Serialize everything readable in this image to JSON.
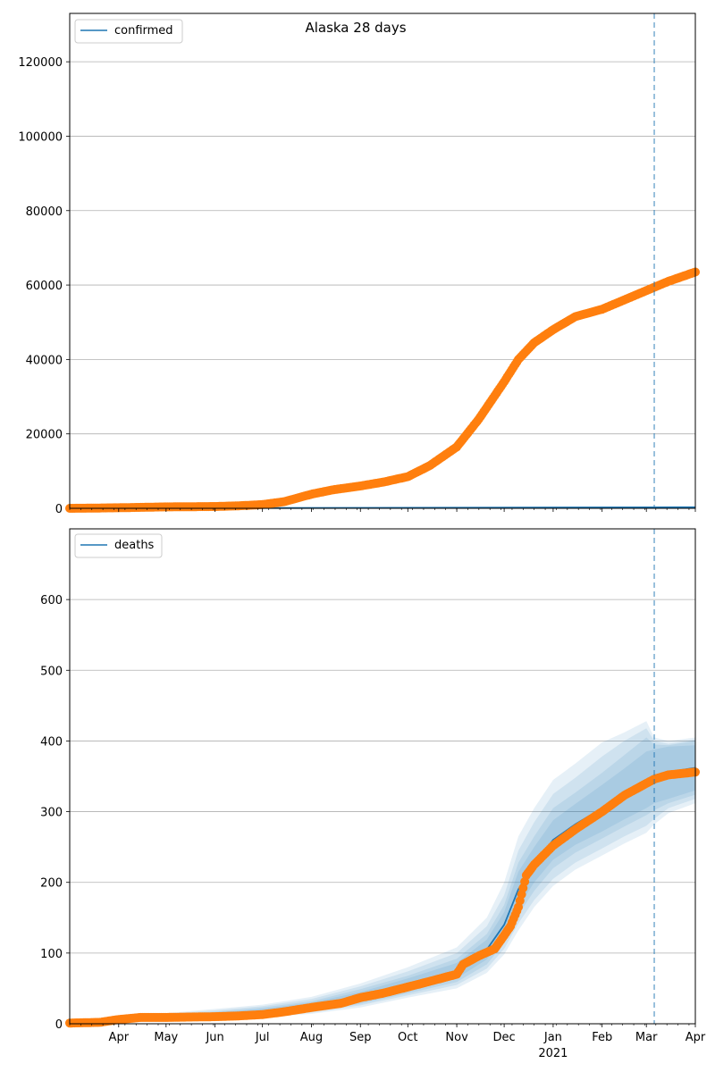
{
  "chart_data": [
    {
      "type": "line",
      "title": "Alaska 28 days",
      "xlabel": "",
      "ylabel": "",
      "x_range": [
        "2020-03-01",
        "2021-04-01"
      ],
      "ylim": [
        0,
        133000
      ],
      "yticks": [
        0,
        20000,
        40000,
        60000,
        80000,
        100000,
        120000
      ],
      "grid": "y",
      "legend": {
        "position": "top-left",
        "entries": [
          "confirmed"
        ]
      },
      "forecast_start": "2021-03-06",
      "series": [
        {
          "name": "confirmed",
          "kind": "model",
          "color": "#1f77b4",
          "x": [
            "2020-03-01",
            "2020-07-01",
            "2020-11-01",
            "2021-03-06",
            "2021-04-01"
          ],
          "y": [
            0,
            80,
            180,
            270,
            300
          ]
        },
        {
          "kind": "observed",
          "color": "#ff7f0e",
          "x": [
            "2020-03-01",
            "2020-03-15",
            "2020-04-01",
            "2020-05-01",
            "2020-06-01",
            "2020-06-15",
            "2020-07-01",
            "2020-07-15",
            "2020-08-01",
            "2020-08-15",
            "2020-09-01",
            "2020-09-15",
            "2020-10-01",
            "2020-10-15",
            "2020-11-01",
            "2020-11-15",
            "2020-12-01",
            "2020-12-10",
            "2020-12-20",
            "2021-01-01",
            "2021-01-15",
            "2021-02-01",
            "2021-02-15",
            "2021-03-01",
            "2021-03-15",
            "2021-04-01"
          ],
          "y": [
            0,
            50,
            150,
            380,
            480,
            650,
            1000,
            1800,
            3800,
            5000,
            6000,
            7000,
            8500,
            11500,
            16500,
            24000,
            34000,
            40000,
            44500,
            48000,
            51500,
            53500,
            56000,
            58500,
            61000,
            63500
          ]
        }
      ]
    },
    {
      "type": "line",
      "title": "",
      "xlabel": "",
      "ylabel": "",
      "x_range": [
        "2020-03-01",
        "2021-04-01"
      ],
      "ylim": [
        0,
        700
      ],
      "yticks": [
        0,
        100,
        200,
        300,
        400,
        500,
        600
      ],
      "grid": "y",
      "legend": {
        "position": "top-left",
        "entries": [
          "deaths"
        ]
      },
      "forecast_start": "2021-03-06",
      "x_tick_labels": [
        {
          "label": "Apr",
          "x": "2020-04-01"
        },
        {
          "label": "May",
          "x": "2020-05-01"
        },
        {
          "label": "Jun",
          "x": "2020-06-01"
        },
        {
          "label": "Jul",
          "x": "2020-07-01"
        },
        {
          "label": "Aug",
          "x": "2020-08-01"
        },
        {
          "label": "Sep",
          "x": "2020-09-01"
        },
        {
          "label": "Oct",
          "x": "2020-10-01"
        },
        {
          "label": "Nov",
          "x": "2020-11-01"
        },
        {
          "label": "Dec",
          "x": "2020-12-01"
        },
        {
          "label": "Jan",
          "x": "2021-01-01"
        },
        {
          "label": "Feb",
          "x": "2021-02-01"
        },
        {
          "label": "Mar",
          "x": "2021-03-01"
        },
        {
          "label": "Apr",
          "x": "2021-04-01"
        }
      ],
      "x_year_label": {
        "label": "2021",
        "x": "2021-01-01"
      },
      "series": [
        {
          "name": "deaths",
          "kind": "model",
          "color": "#1f77b4",
          "x": [
            "2020-03-01",
            "2020-04-01",
            "2020-05-01",
            "2020-06-01",
            "2020-07-01",
            "2020-08-01",
            "2020-09-01",
            "2020-10-01",
            "2020-11-01",
            "2020-11-20",
            "2020-12-01",
            "2020-12-10",
            "2020-12-20",
            "2021-01-01",
            "2021-01-15",
            "2021-02-01",
            "2021-02-15",
            "2021-03-01",
            "2021-03-06",
            "2021-03-15",
            "2021-04-01"
          ],
          "y": [
            0,
            5,
            10,
            13,
            17,
            25,
            38,
            55,
            75,
            105,
            140,
            190,
            225,
            260,
            282,
            305,
            325,
            345,
            350,
            356,
            362
          ],
          "bands": [
            {
              "lower": [
                0,
                4,
                8,
                10,
                13,
                20,
                31,
                46,
                64,
                91,
                122,
                165,
                200,
                232,
                253,
                272,
                289,
                305,
                312,
                318,
                330
              ],
              "upper": [
                0,
                6,
                12,
                16,
                21,
                30,
                45,
                64,
                86,
                119,
                158,
                215,
                250,
                288,
                311,
                338,
                361,
                385,
                388,
                392,
                394
              ]
            },
            {
              "lower": [
                0,
                3,
                7,
                9,
                12,
                18,
                28,
                43,
                59,
                84,
                114,
                154,
                188,
                220,
                242,
                262,
                279,
                295,
                302,
                312,
                324
              ],
              "upper": [
                0,
                7,
                13,
                17,
                23,
                32,
                49,
                68,
                92,
                127,
                168,
                228,
                265,
                305,
                327,
                355,
                380,
                405,
                395,
                394,
                400
              ]
            },
            {
              "lower": [
                0,
                2,
                6,
                8,
                11,
                16,
                26,
                40,
                55,
                78,
                106,
                142,
                175,
                205,
                228,
                248,
                265,
                280,
                290,
                305,
                318
              ],
              "upper": [
                0,
                8,
                14,
                19,
                25,
                35,
                53,
                74,
                100,
                138,
                182,
                245,
                285,
                325,
                348,
                378,
                400,
                418,
                400,
                396,
                402
              ]
            },
            {
              "lower": [
                0,
                1,
                5,
                7,
                9,
                14,
                23,
                37,
                50,
                72,
                98,
                132,
                165,
                195,
                218,
                238,
                255,
                270,
                282,
                298,
                312
              ],
              "upper": [
                0,
                9,
                15,
                21,
                27,
                38,
                57,
                80,
                108,
                150,
                200,
                265,
                305,
                345,
                368,
                398,
                412,
                428,
                405,
                400,
                405
              ]
            }
          ]
        },
        {
          "kind": "observed",
          "color": "#ff7f0e",
          "x": [
            "2020-03-01",
            "2020-03-20",
            "2020-04-01",
            "2020-04-15",
            "2020-05-01",
            "2020-06-01",
            "2020-06-15",
            "2020-07-01",
            "2020-07-15",
            "2020-08-01",
            "2020-08-20",
            "2020-09-01",
            "2020-09-15",
            "2020-10-01",
            "2020-10-15",
            "2020-10-25",
            "2020-11-01",
            "2020-11-05",
            "2020-11-15",
            "2020-11-25",
            "2020-12-01",
            "2020-12-05",
            "2020-12-10",
            "2020-12-15",
            "2020-12-20",
            "2021-01-01",
            "2021-01-15",
            "2021-02-01",
            "2021-02-15",
            "2021-03-01",
            "2021-03-06",
            "2021-03-15",
            "2021-04-01"
          ],
          "y": [
            1,
            2,
            6,
            9,
            9,
            10,
            11,
            13,
            17,
            23,
            29,
            37,
            43,
            52,
            60,
            66,
            70,
            84,
            96,
            106,
            125,
            138,
            165,
            210,
            225,
            252,
            275,
            300,
            323,
            340,
            346,
            352,
            356
          ]
        }
      ]
    }
  ]
}
